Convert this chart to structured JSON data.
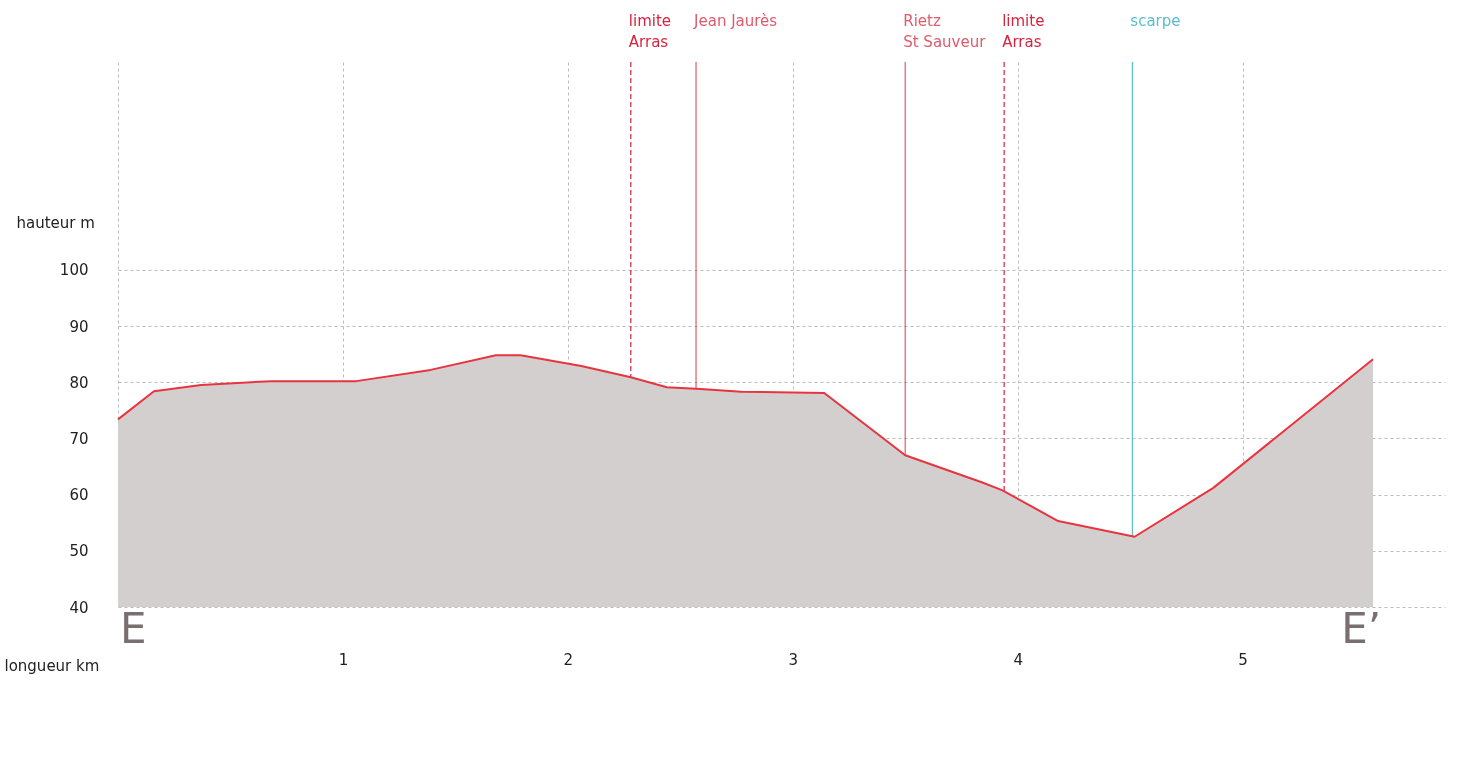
{
  "chart_data": {
    "type": "area",
    "xlabel": "longueur km",
    "ylabel": "hauteur m",
    "x": [
      0,
      0.16,
      0.37,
      0.68,
      1.06,
      1.39,
      1.68,
      1.79,
      2.06,
      2.28,
      2.44,
      2.59,
      2.77,
      3.14,
      3.5,
      3.84,
      3.93,
      4.18,
      4.52,
      4.87,
      5.58
    ],
    "series": [
      {
        "color": "#e8343f",
        "values": [
          73.4,
          78.4,
          79.5,
          80.2,
          80.2,
          82.2,
          84.8,
          84.8,
          82.9,
          80.9,
          79.1,
          78.8,
          78.3,
          78.1,
          67.0,
          62.2,
          60.8,
          55.3,
          52.5,
          61.2,
          84.1
        ]
      }
    ],
    "xlim": [
      0,
      5.9
    ],
    "xticks": [
      {
        "value": 0,
        "label": null
      },
      1,
      2,
      3,
      4,
      5
    ],
    "ylim": [
      40,
      137
    ],
    "yticks": [
      40,
      50,
      60,
      70,
      80,
      90,
      100
    ],
    "grid": true,
    "ref_lines": [
      {
        "axis": "x",
        "value": 2.28,
        "label": "limite\nArras",
        "color": "#d6233f",
        "line_style": "dashed"
      },
      {
        "axis": "x",
        "value": 2.57,
        "label": "Jean Jaurès",
        "color": "#e05a6a",
        "line_style": "solid"
      },
      {
        "axis": "x",
        "value": 3.5,
        "label": "Rietz\nSt Sauveur",
        "color": "#e05a6a",
        "line_style": "solid"
      },
      {
        "axis": "x",
        "value": 3.94,
        "label": "limite\nArras",
        "color": "#d6233f",
        "line_style": "dashed"
      },
      {
        "axis": "x",
        "value": 4.51,
        "label": "scarpe",
        "color": "#5bbcd0",
        "line_style": "solid"
      }
    ],
    "annotations": [
      "E",
      "E’"
    ]
  }
}
